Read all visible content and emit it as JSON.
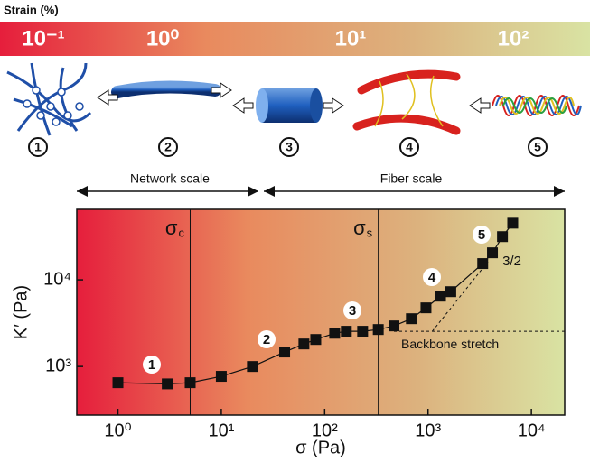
{
  "chart_data": {
    "type": "line",
    "strain_title": "Strain (%)",
    "strain_labels": [
      "10⁻¹",
      "10⁰",
      "10¹",
      "10²"
    ],
    "stages": [
      "1",
      "2",
      "3",
      "4",
      "5"
    ],
    "scale_labels": [
      "Network scale",
      "Fiber scale"
    ],
    "xlabel": "σ (Pa)",
    "ylabel": "K′ (Pa)",
    "log_x": true,
    "log_y": true,
    "xlim": [
      0.4,
      21000
    ],
    "ylim": [
      275,
      65000
    ],
    "xticks": [
      {
        "value": 1,
        "label": "10⁰"
      },
      {
        "value": 10,
        "label": "10¹"
      },
      {
        "value": 100,
        "label": "10²"
      },
      {
        "value": 1000,
        "label": "10³"
      },
      {
        "value": 10000,
        "label": "10⁴"
      }
    ],
    "yticks": [
      {
        "value": 1000,
        "label": "10³"
      },
      {
        "value": 10000,
        "label": "10⁴"
      }
    ],
    "x": [
      1,
      3,
      5,
      10,
      20,
      41,
      63,
      82,
      125,
      162,
      233,
      330,
      468,
      690,
      955,
      1320,
      1660,
      3380,
      4200,
      5250,
      6600
    ],
    "values": [
      650,
      630,
      650,
      770,
      1000,
      1470,
      1820,
      2050,
      2420,
      2550,
      2550,
      2670,
      2940,
      3560,
      4750,
      6480,
      7300,
      15400,
      20500,
      31500,
      45000
    ],
    "color": "#111111",
    "vlines": [
      {
        "label": "σ",
        "sub": "c",
        "x": 5
      },
      {
        "label": "σ",
        "sub": "s",
        "x": 330
      }
    ],
    "backbone": {
      "label": "Backbone stretch",
      "y": 2550,
      "x_from": 468
    },
    "slope": {
      "label": "3/2",
      "x": [
        1100,
        3800
      ],
      "y": [
        2550,
        16200
      ]
    }
  }
}
